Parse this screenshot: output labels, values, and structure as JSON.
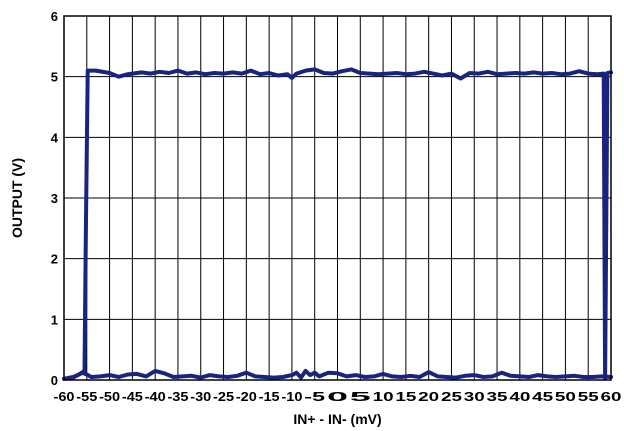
{
  "chart_data": {
    "type": "line",
    "title": "",
    "xlabel": "IN+ - IN- (mV)",
    "ylabel": "OUTPUT (V)",
    "xlim": [
      -60,
      60
    ],
    "ylim": [
      0,
      6
    ],
    "x_ticks": [
      -60,
      -55,
      -50,
      -45,
      -40,
      -35,
      -30,
      -25,
      -20,
      -15,
      -10,
      -5,
      0,
      5,
      10,
      15,
      20,
      25,
      30,
      35,
      40,
      45,
      50,
      55,
      60
    ],
    "y_ticks": [
      0,
      1,
      2,
      3,
      4,
      5,
      6
    ],
    "grid": true,
    "legend": "none",
    "line_color": "#1a237e",
    "series": [
      {
        "x": [
          -60,
          -58,
          -56.5,
          -55.5,
          -55.2,
          -54.8,
          -53,
          -50,
          -48,
          -46,
          -45,
          -43,
          -41,
          -39,
          -37,
          -35,
          -33,
          -31,
          -29,
          -27,
          -25,
          -23,
          -21,
          -19,
          -17,
          -15,
          -13,
          -11,
          -10,
          -9,
          -7,
          -5,
          -3,
          -1,
          1,
          3,
          5,
          7,
          9,
          11,
          13,
          15,
          17,
          19,
          21,
          23,
          25,
          27,
          29,
          31,
          33,
          35,
          37,
          39,
          41,
          43,
          45,
          47,
          49,
          51,
          53,
          55,
          57,
          58.4,
          58.7,
          59.2,
          60
        ],
        "y": [
          0.02,
          0.04,
          0.1,
          0.15,
          2.5,
          5.1,
          5.1,
          5.06,
          5.0,
          5.04,
          5.05,
          5.07,
          5.05,
          5.08,
          5.06,
          5.1,
          5.05,
          5.07,
          5.04,
          5.06,
          5.05,
          5.07,
          5.05,
          5.1,
          5.04,
          5.06,
          5.02,
          5.04,
          4.98,
          5.05,
          5.1,
          5.12,
          5.06,
          5.05,
          5.09,
          5.12,
          5.06,
          5.05,
          5.04,
          5.05,
          5.06,
          5.04,
          5.05,
          5.08,
          5.05,
          5.02,
          5.05,
          4.97,
          5.06,
          5.05,
          5.08,
          5.04,
          5.05,
          5.06,
          5.05,
          5.07,
          5.05,
          5.06,
          5.04,
          5.05,
          5.09,
          5.05,
          5.04,
          5.05,
          0.03,
          5.06,
          5.07
        ]
      },
      {
        "x": [
          -60,
          -58,
          -57,
          -56,
          -55,
          -54,
          -52,
          -50,
          -48,
          -46,
          -44,
          -42,
          -40,
          -38,
          -36,
          -34,
          -32,
          -30,
          -28,
          -26,
          -24,
          -22,
          -20,
          -18,
          -16,
          -14,
          -12,
          -10,
          -9,
          -8,
          -7,
          -6,
          -5,
          -4,
          -2,
          0,
          2,
          4,
          6,
          8,
          10,
          12,
          14,
          16,
          18,
          20,
          22,
          24,
          26,
          28,
          30,
          32,
          34,
          36,
          38,
          40,
          42,
          44,
          46,
          48,
          50,
          52,
          54,
          56,
          58,
          60
        ],
        "y": [
          0.02,
          0.05,
          0.08,
          0.12,
          0.09,
          0.05,
          0.06,
          0.08,
          0.05,
          0.09,
          0.1,
          0.06,
          0.15,
          0.11,
          0.05,
          0.06,
          0.07,
          0.04,
          0.08,
          0.06,
          0.05,
          0.07,
          0.12,
          0.06,
          0.05,
          0.04,
          0.05,
          0.08,
          0.12,
          0.04,
          0.15,
          0.08,
          0.12,
          0.06,
          0.12,
          0.11,
          0.06,
          0.08,
          0.05,
          0.06,
          0.1,
          0.06,
          0.05,
          0.07,
          0.05,
          0.13,
          0.06,
          0.05,
          0.04,
          0.07,
          0.08,
          0.05,
          0.06,
          0.12,
          0.07,
          0.06,
          0.05,
          0.08,
          0.06,
          0.05,
          0.06,
          0.07,
          0.05,
          0.05,
          0.06,
          0.05
        ]
      }
    ]
  }
}
